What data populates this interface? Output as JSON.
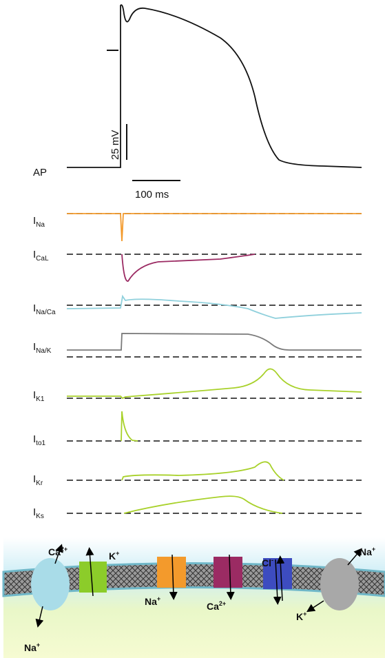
{
  "ap": {
    "label": "AP",
    "voltage_scale": "25 mV",
    "time_scale": "100 ms"
  },
  "currents": [
    {
      "main": "I",
      "sub": "Na"
    },
    {
      "main": "I",
      "sub": "CaL"
    },
    {
      "main": "I",
      "sub": "Na/Ca"
    },
    {
      "main": "I",
      "sub": "Na/K"
    },
    {
      "main": "I",
      "sub": "K1"
    },
    {
      "main": "I",
      "sub": "to1"
    },
    {
      "main": "I",
      "sub": "Kr"
    },
    {
      "main": "I",
      "sub": "Ks"
    }
  ],
  "ions": [
    {
      "symbol": "Ca",
      "charge": "2+"
    },
    {
      "symbol": "K",
      "charge": "+"
    },
    {
      "symbol": "Na",
      "charge": "+"
    },
    {
      "symbol": "Ca",
      "charge": "2+"
    },
    {
      "symbol": "Cl",
      "charge": "-"
    },
    {
      "symbol": "Na",
      "charge": "+"
    },
    {
      "symbol": "K",
      "charge": "+"
    },
    {
      "symbol": "Na",
      "charge": "+"
    }
  ]
}
